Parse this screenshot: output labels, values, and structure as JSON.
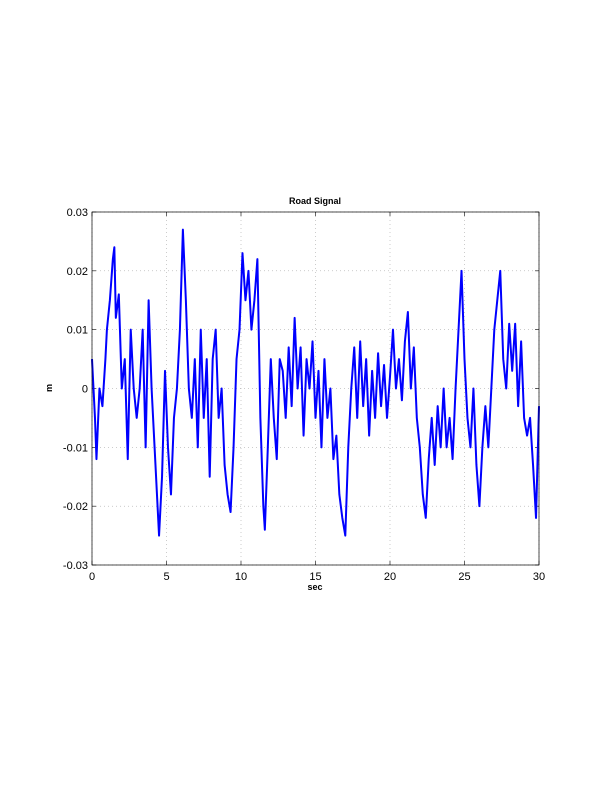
{
  "chart_data": {
    "type": "line",
    "title": "Road Signal",
    "x_label": "sec",
    "y_label": "m",
    "color": "#0000ff",
    "grid": true,
    "xlim": [
      0,
      30
    ],
    "xticks": [
      0,
      5,
      10,
      15,
      20,
      25,
      30
    ],
    "ylim": [
      -0.03,
      0.03
    ],
    "yticks": [
      -0.03,
      -0.02,
      -0.01,
      0,
      0.01,
      0.02,
      0.03
    ],
    "x": [
      0,
      0.2,
      0.3,
      0.5,
      0.7,
      0.9,
      1.0,
      1.2,
      1.4,
      1.5,
      1.6,
      1.8,
      2.0,
      2.2,
      2.4,
      2.6,
      2.8,
      3.0,
      3.2,
      3.4,
      3.6,
      3.8,
      4.0,
      4.2,
      4.4,
      4.5,
      4.7,
      4.9,
      5.1,
      5.3,
      5.5,
      5.7,
      5.9,
      6.1,
      6.3,
      6.5,
      6.7,
      6.9,
      7.1,
      7.3,
      7.5,
      7.7,
      7.9,
      8.1,
      8.3,
      8.5,
      8.7,
      8.9,
      9.1,
      9.3,
      9.5,
      9.7,
      9.9,
      10.1,
      10.3,
      10.5,
      10.7,
      10.9,
      11.1,
      11.3,
      11.5,
      11.6,
      11.8,
      12.0,
      12.2,
      12.4,
      12.6,
      12.8,
      13.0,
      13.2,
      13.4,
      13.6,
      13.8,
      14.0,
      14.2,
      14.4,
      14.6,
      14.8,
      15.0,
      15.2,
      15.4,
      15.6,
      15.8,
      16.0,
      16.2,
      16.4,
      16.6,
      16.8,
      17.0,
      17.2,
      17.4,
      17.6,
      17.8,
      18.0,
      18.2,
      18.4,
      18.6,
      18.8,
      19.0,
      19.2,
      19.4,
      19.6,
      19.8,
      20.0,
      20.2,
      20.4,
      20.6,
      20.8,
      21.0,
      21.2,
      21.4,
      21.6,
      21.8,
      22.0,
      22.2,
      22.4,
      22.6,
      22.8,
      23.0,
      23.2,
      23.4,
      23.6,
      23.8,
      24.0,
      24.2,
      24.4,
      24.6,
      24.8,
      25.0,
      25.2,
      25.4,
      25.6,
      25.8,
      26.0,
      26.2,
      26.4,
      26.6,
      26.8,
      27.0,
      27.2,
      27.4,
      27.6,
      27.8,
      28.0,
      28.2,
      28.4,
      28.6,
      28.8,
      29.0,
      29.2,
      29.4,
      29.6,
      29.8,
      30.0
    ],
    "values": [
      0.005,
      -0.005,
      -0.012,
      0.0,
      -0.003,
      0.005,
      0.01,
      0.015,
      0.022,
      0.024,
      0.012,
      0.016,
      0.0,
      0.005,
      -0.012,
      0.01,
      0.0,
      -0.005,
      0.0,
      0.01,
      -0.01,
      0.015,
      0.0,
      -0.01,
      -0.02,
      -0.025,
      -0.015,
      0.003,
      -0.01,
      -0.018,
      -0.005,
      0.0,
      0.01,
      0.027,
      0.015,
      0.0,
      -0.005,
      0.005,
      -0.01,
      0.01,
      -0.005,
      0.005,
      -0.015,
      0.005,
      0.01,
      -0.005,
      0.0,
      -0.013,
      -0.018,
      -0.021,
      -0.01,
      0.005,
      0.01,
      0.023,
      0.015,
      0.02,
      0.01,
      0.015,
      0.022,
      -0.005,
      -0.02,
      -0.024,
      -0.01,
      0.005,
      -0.005,
      -0.012,
      0.005,
      0.003,
      -0.005,
      0.007,
      -0.003,
      0.012,
      0.0,
      0.007,
      -0.008,
      0.005,
      0.0,
      0.008,
      -0.005,
      0.003,
      -0.01,
      0.005,
      -0.005,
      0.0,
      -0.012,
      -0.008,
      -0.018,
      -0.022,
      -0.025,
      -0.01,
      0.0,
      0.007,
      -0.005,
      0.008,
      -0.003,
      0.005,
      -0.008,
      0.003,
      -0.005,
      0.006,
      -0.003,
      0.004,
      -0.005,
      0.002,
      0.01,
      0.0,
      0.005,
      -0.002,
      0.008,
      0.013,
      0.0,
      0.007,
      -0.005,
      -0.01,
      -0.018,
      -0.022,
      -0.012,
      -0.005,
      -0.013,
      -0.003,
      -0.01,
      0.0,
      -0.01,
      -0.005,
      -0.012,
      0.0,
      0.01,
      0.02,
      0.005,
      -0.005,
      -0.01,
      0.0,
      -0.013,
      -0.02,
      -0.01,
      -0.003,
      -0.01,
      0.0,
      0.01,
      0.015,
      0.02,
      0.005,
      0.0,
      0.011,
      0.003,
      0.011,
      -0.003,
      0.008,
      -0.005,
      -0.008,
      -0.005,
      -0.013,
      -0.022,
      -0.003
    ]
  }
}
